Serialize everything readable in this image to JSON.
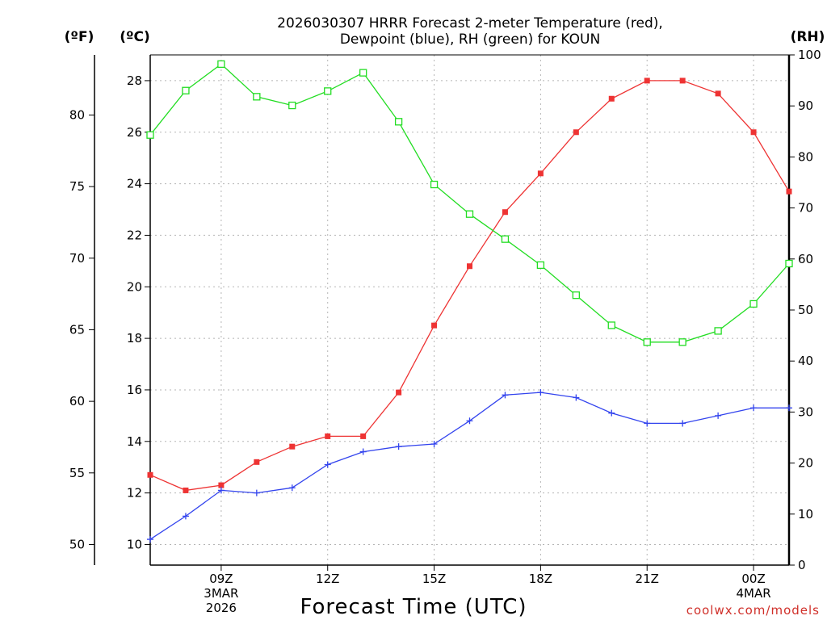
{
  "chart_data": {
    "type": "line",
    "title_line1": "2026030307 HRRR Forecast 2-meter Temperature (red),",
    "title_line2": "Dewpoint (blue), RH (green) for KOUN",
    "unit_f": "(ºF)",
    "unit_c": "(ºC)",
    "unit_rh": "(RH)",
    "xlabel": "Forecast Time (UTC)",
    "credit": "coolwx.com/models",
    "x_hours": [
      0,
      1,
      2,
      3,
      4,
      5,
      6,
      7,
      8,
      9,
      10,
      11,
      12,
      13,
      14,
      15,
      16,
      17,
      18
    ],
    "x_range": [
      0,
      18
    ],
    "x_ticks": [
      {
        "hour": 2,
        "label": "09Z",
        "sub1": "3MAR",
        "sub2": "2026"
      },
      {
        "hour": 5,
        "label": "12Z",
        "sub1": "",
        "sub2": ""
      },
      {
        "hour": 8,
        "label": "15Z",
        "sub1": "",
        "sub2": ""
      },
      {
        "hour": 11,
        "label": "18Z",
        "sub1": "",
        "sub2": ""
      },
      {
        "hour": 14,
        "label": "21Z",
        "sub1": "",
        "sub2": ""
      },
      {
        "hour": 17,
        "label": "00Z",
        "sub1": "4MAR",
        "sub2": ""
      }
    ],
    "c_range": [
      9.2,
      29.0
    ],
    "c_ticks": [
      10,
      12,
      14,
      16,
      18,
      20,
      22,
      24,
      26,
      28
    ],
    "f_ticks": [
      50,
      55,
      60,
      65,
      70,
      75,
      80
    ],
    "rh_range": [
      0,
      100
    ],
    "rh_ticks": [
      0,
      10,
      20,
      30,
      40,
      50,
      60,
      70,
      80,
      90,
      100
    ],
    "series": [
      {
        "name": "Temperature",
        "unit": "C",
        "color": "#ee3333",
        "marker": "filled-square",
        "values": [
          12.7,
          12.1,
          12.3,
          13.2,
          13.8,
          14.2,
          14.2,
          15.9,
          18.5,
          20.8,
          22.9,
          24.4,
          26.0,
          27.3,
          28.0,
          28.0,
          27.5,
          26.0,
          23.7
        ]
      },
      {
        "name": "Dewpoint",
        "unit": "C",
        "color": "#3344ee",
        "marker": "plus",
        "values": [
          10.2,
          11.1,
          12.1,
          12.0,
          12.2,
          13.1,
          13.6,
          13.8,
          13.9,
          14.8,
          15.8,
          15.9,
          15.7,
          15.1,
          14.7,
          14.7,
          15.0,
          15.3,
          15.3
        ]
      },
      {
        "name": "RH",
        "unit": "%",
        "color": "#22dd22",
        "marker": "open-square",
        "values": [
          84.3,
          93.0,
          98.2,
          91.8,
          90.1,
          92.9,
          96.5,
          86.9,
          74.6,
          68.8,
          63.9,
          58.8,
          52.9,
          47.0,
          43.7,
          43.7,
          45.9,
          51.2,
          59.1
        ]
      }
    ]
  }
}
